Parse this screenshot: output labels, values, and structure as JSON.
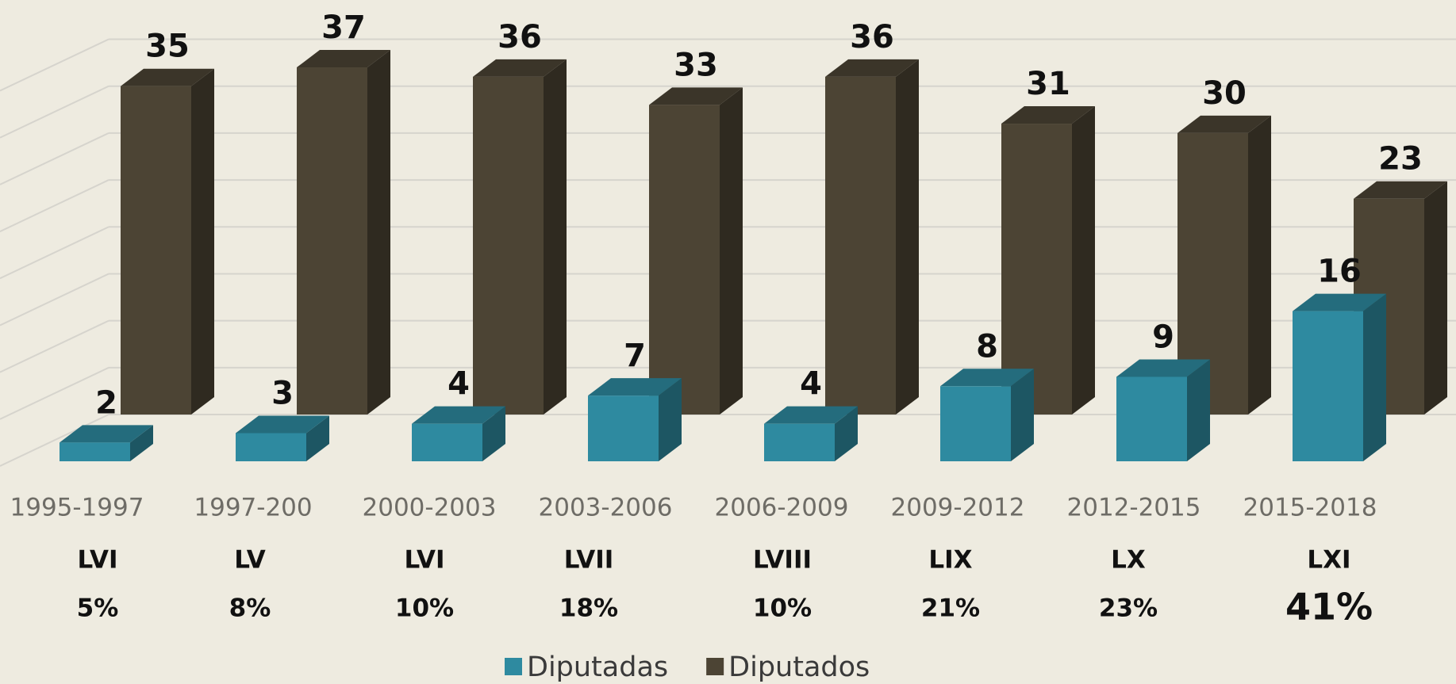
{
  "chart_data": {
    "type": "bar3d",
    "categories": [
      "1995-1997",
      "1997-200",
      "2000-2003",
      "2003-2006",
      "2006-2009",
      "2009-2012",
      "2012-2015",
      "2015-2018"
    ],
    "legislatures": [
      "LVI",
      "LV",
      "LVI",
      "LVII",
      "LVIII",
      "LIX",
      "LX",
      "LXI"
    ],
    "percent_labels": [
      "5%",
      "8%",
      "10%",
      "18%",
      "10%",
      "21%",
      "23%",
      "41%"
    ],
    "series": [
      {
        "name": "Diputadas",
        "color": "#2e8aa0",
        "values": [
          2,
          3,
          4,
          7,
          4,
          8,
          9,
          16
        ]
      },
      {
        "name": "Diputados",
        "color": "#4c4434",
        "values": [
          35,
          37,
          36,
          33,
          36,
          31,
          30,
          23
        ]
      }
    ],
    "ylim": [
      0,
      40
    ],
    "yticks": [
      0,
      5,
      10,
      15,
      20,
      25,
      30,
      35,
      40
    ],
    "grid": true,
    "legend": "bottom"
  }
}
